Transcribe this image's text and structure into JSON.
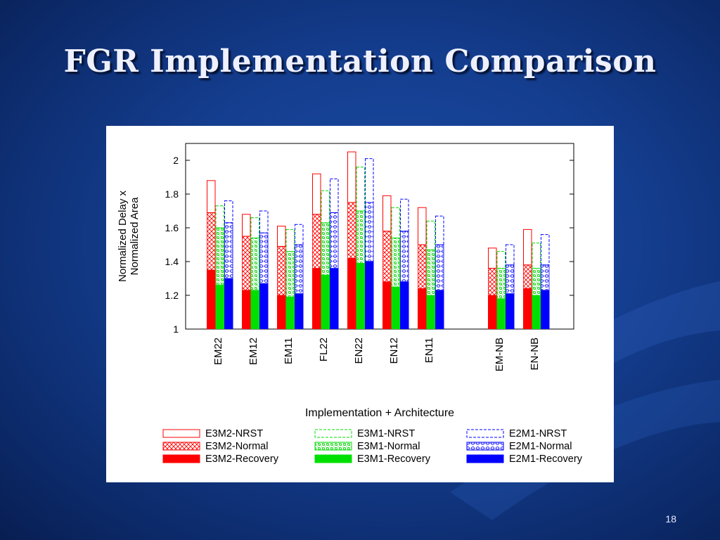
{
  "slide": {
    "title": "FGR Implementation Comparison",
    "page_number": "18"
  },
  "colors": {
    "E3M2": "#ff0000",
    "E3M1": "#00e000",
    "E2M1": "#0000ff"
  },
  "chart_data": {
    "type": "bar",
    "xlabel": "Implementation + Architecture",
    "ylabel": [
      "Normalized Delay x",
      "Normalized Area"
    ],
    "ylim": [
      1,
      2.1
    ],
    "yticks": [
      "1",
      "1.2",
      "1.4",
      "1.6",
      "1.8",
      "2"
    ],
    "grid": false,
    "legend_position": "bottom",
    "categories": [
      "EM22",
      "EM12",
      "EM11",
      "FL22",
      "EN22",
      "EN12",
      "EN11",
      "EM-NB",
      "EN-NB"
    ],
    "series": [
      {
        "name": "E3M2",
        "family": "E3M2",
        "recovery": [
          1.35,
          1.23,
          1.2,
          1.36,
          1.42,
          1.28,
          1.24,
          1.2,
          1.24
        ],
        "normal": [
          1.69,
          1.55,
          1.49,
          1.68,
          1.75,
          1.58,
          1.5,
          1.36,
          1.38
        ],
        "nrst": [
          1.88,
          1.68,
          1.61,
          1.92,
          2.05,
          1.79,
          1.72,
          1.48,
          1.59
        ]
      },
      {
        "name": "E3M1",
        "family": "E3M1",
        "recovery": [
          1.26,
          1.23,
          1.19,
          1.32,
          1.39,
          1.25,
          1.2,
          1.18,
          1.2
        ],
        "normal": [
          1.6,
          1.54,
          1.46,
          1.63,
          1.7,
          1.54,
          1.47,
          1.36,
          1.36
        ],
        "nrst": [
          1.73,
          1.66,
          1.59,
          1.82,
          1.96,
          1.72,
          1.64,
          1.46,
          1.51
        ]
      },
      {
        "name": "E2M1",
        "family": "E2M1",
        "recovery": [
          1.3,
          1.27,
          1.21,
          1.36,
          1.4,
          1.28,
          1.23,
          1.21,
          1.23
        ],
        "normal": [
          1.63,
          1.57,
          1.5,
          1.69,
          1.75,
          1.58,
          1.5,
          1.38,
          1.38
        ],
        "nrst": [
          1.76,
          1.7,
          1.62,
          1.89,
          2.01,
          1.77,
          1.67,
          1.5,
          1.56
        ]
      }
    ],
    "legend": [
      {
        "label": "E3M2-NRST",
        "family": "E3M2",
        "style": "nrst"
      },
      {
        "label": "E3M1-NRST",
        "family": "E3M1",
        "style": "nrst"
      },
      {
        "label": "E2M1-NRST",
        "family": "E2M1",
        "style": "nrst"
      },
      {
        "label": "E3M2-Normal",
        "family": "E3M2",
        "style": "normal"
      },
      {
        "label": "E3M1-Normal",
        "family": "E3M1",
        "style": "normal"
      },
      {
        "label": "E2M1-Normal",
        "family": "E2M1",
        "style": "normal"
      },
      {
        "label": "E3M2-Recovery",
        "family": "E3M2",
        "style": "recovery"
      },
      {
        "label": "E3M1-Recovery",
        "family": "E3M1",
        "style": "recovery"
      },
      {
        "label": "E2M1-Recovery",
        "family": "E2M1",
        "style": "recovery"
      }
    ]
  }
}
